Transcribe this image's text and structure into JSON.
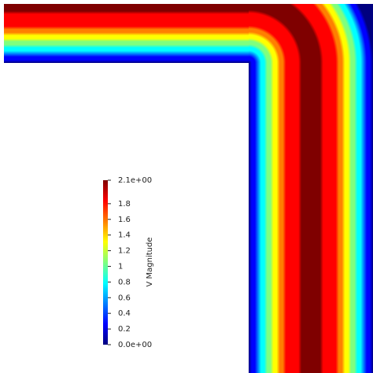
{
  "chart_data": {
    "type": "field",
    "colorbar_title": "V Magnitude",
    "clim": [
      0,
      2.1
    ],
    "colormap": [
      "#00007f",
      "#0000ff",
      "#007fff",
      "#00ffff",
      "#7fff7f",
      "#ffff00",
      "#ff7f00",
      "#ff0000",
      "#7f0000"
    ],
    "ticks": [
      {
        "value": 0,
        "label": "0.0e+00"
      },
      0.2,
      0.4,
      0.6,
      0.8,
      1,
      1.2,
      1.4,
      1.6,
      1.8,
      {
        "value": 2.1,
        "label": "2.1e+00"
      }
    ]
  }
}
